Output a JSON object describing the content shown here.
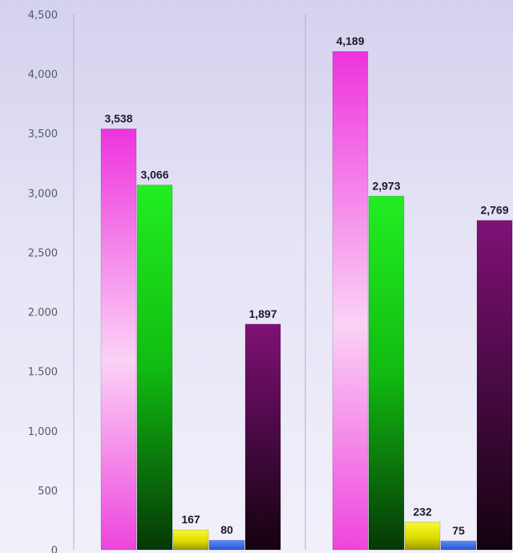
{
  "chart_data": {
    "type": "bar",
    "title": "",
    "xlabel": "",
    "ylabel": "",
    "ylim": [
      0,
      4500
    ],
    "yticks": [
      0,
      500,
      1000,
      1500,
      2000,
      2500,
      3000,
      3500,
      4000,
      4500
    ],
    "ytick_labels": [
      "0",
      "500",
      "1,000",
      "1.500",
      "2.000",
      "2,500",
      "3,000",
      "3,500",
      "4,000",
      "4,500"
    ],
    "grid": false,
    "legend": "none",
    "groups": [
      {
        "bars": [
          {
            "value": 3538,
            "label": "3,538",
            "color": "magenta"
          },
          {
            "value": 3066,
            "label": "3,066",
            "color": "green"
          },
          {
            "value": 167,
            "label": "167",
            "color": "yellow"
          },
          {
            "value": 80,
            "label": "80",
            "color": "blue"
          },
          {
            "value": 1897,
            "label": "1,897",
            "color": "purple"
          }
        ]
      },
      {
        "bars": [
          {
            "value": 4189,
            "label": "4,189",
            "color": "magenta"
          },
          {
            "value": 2973,
            "label": "2,973",
            "color": "green"
          },
          {
            "value": 232,
            "label": "232",
            "color": "yellow"
          },
          {
            "value": 75,
            "label": "75",
            "color": "blue"
          },
          {
            "value": 2769,
            "label": "2,769",
            "color": "purple"
          }
        ]
      }
    ],
    "colors": {
      "magenta": "#ee44dd",
      "green": "#11dd11",
      "yellow": "#eeee11",
      "blue": "#4477ee",
      "purple": "#771166"
    }
  }
}
